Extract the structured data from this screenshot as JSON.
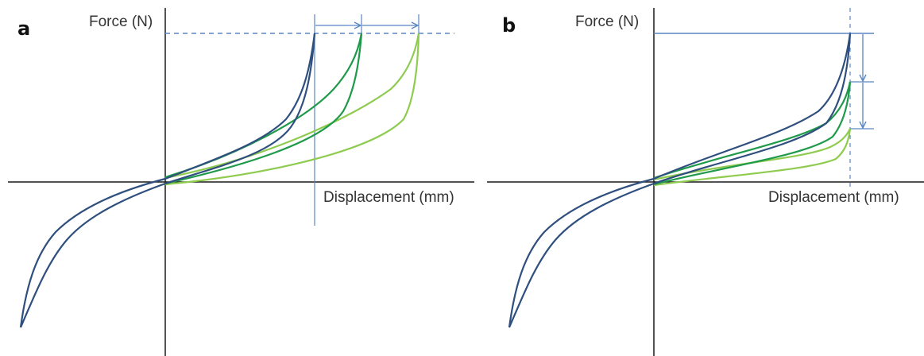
{
  "colors": {
    "axis": "#1a1a1a",
    "guide": "#5b86c4",
    "curve_dark": "#2f4f7e",
    "curve_mid": "#1f9a4a",
    "curve_light": "#8ecb4f"
  },
  "panels": [
    {
      "letter": "a",
      "y_axis_label": "Force (N)",
      "x_axis_label": "Displacement (mm)"
    },
    {
      "letter": "b",
      "y_axis_label": "Force (N)",
      "x_axis_label": "Displacement (mm)"
    }
  ]
}
